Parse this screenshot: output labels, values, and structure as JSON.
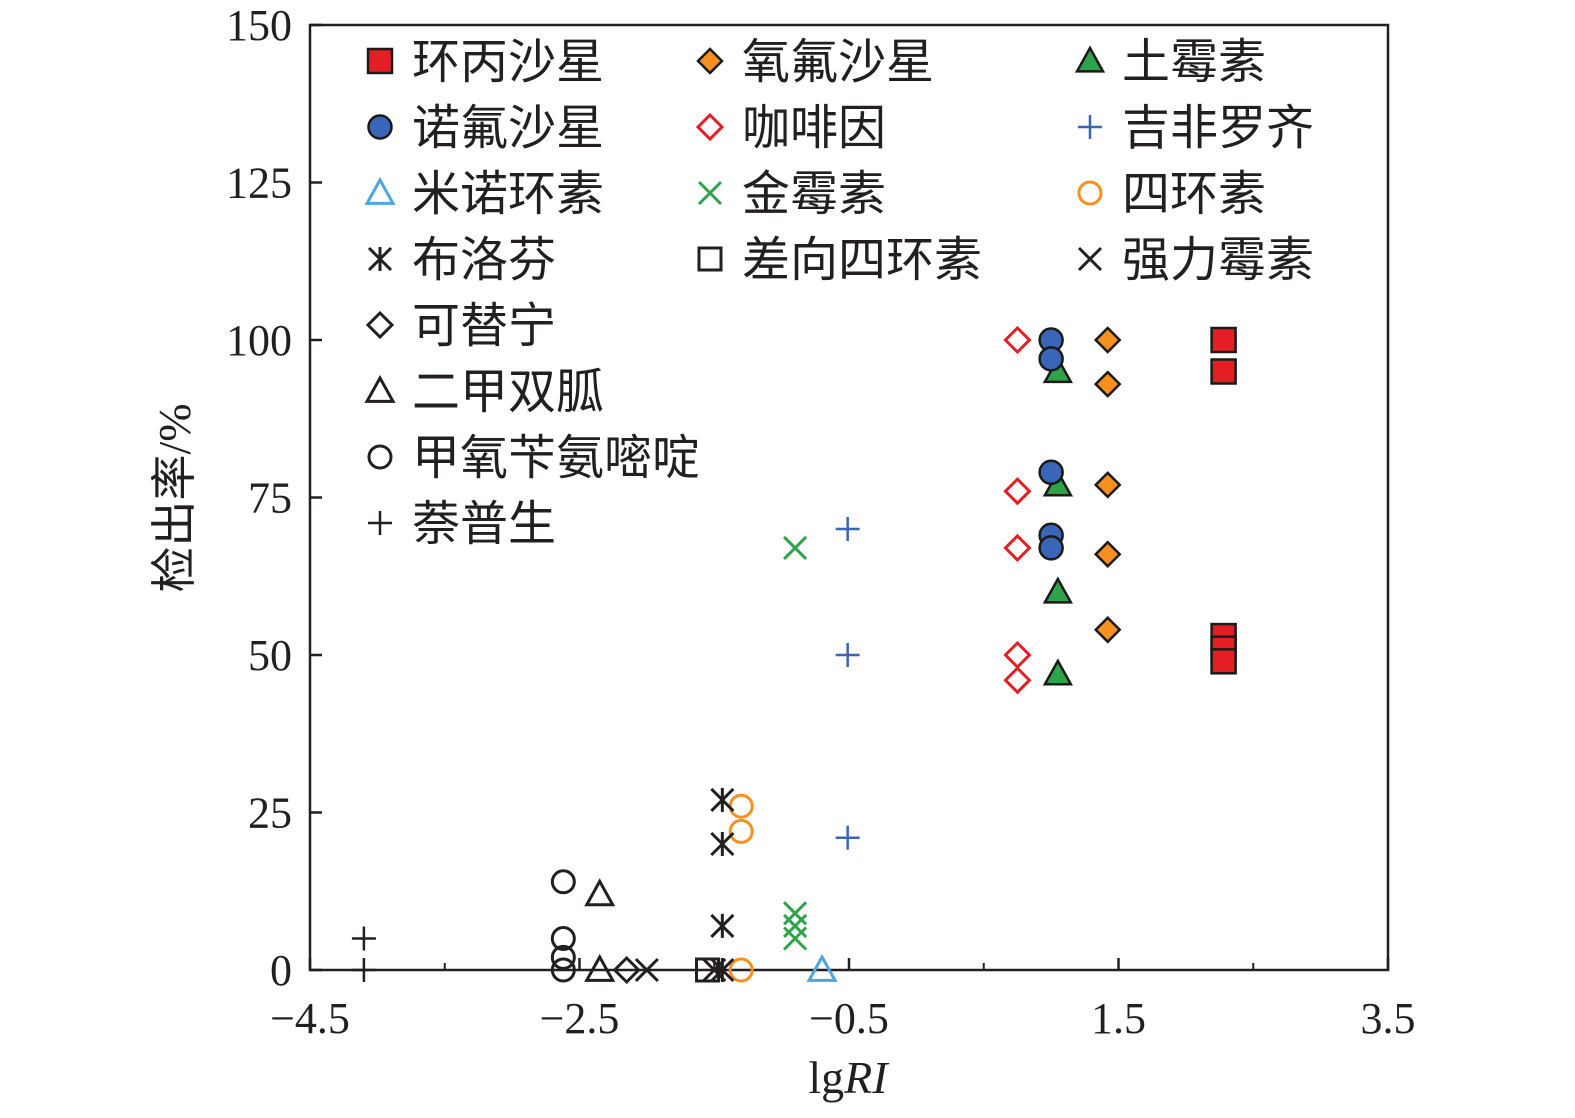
{
  "chart_data": {
    "type": "scatter",
    "xlabel_prefix": "lg",
    "xlabel_italic": "RI",
    "ylabel": "检出率/%",
    "xlim": [
      -4.5,
      3.5
    ],
    "ylim": [
      0,
      150
    ],
    "x_ticks": [
      -4.5,
      -2.5,
      -0.5,
      1.5,
      3.5
    ],
    "x_tick_labels": [
      "−4.5",
      "−2.5",
      "−0.5",
      "1.5",
      "3.5"
    ],
    "y_ticks": [
      0,
      25,
      50,
      75,
      100,
      125,
      150
    ],
    "y_tick_labels": [
      "0",
      "25",
      "50",
      "75",
      "100",
      "125",
      "150"
    ],
    "grid": false,
    "legend_position": "top-left, inside plot, 3 columns",
    "series": [
      {
        "name": "环丙沙星",
        "marker": "square",
        "color": "#e31e24",
        "filled": true,
        "points": [
          [
            2.28,
            100
          ],
          [
            2.28,
            95
          ],
          [
            2.28,
            53
          ],
          [
            2.28,
            51
          ],
          [
            2.28,
            49
          ]
        ]
      },
      {
        "name": "氧氟沙星",
        "marker": "diamond",
        "color": "#f7901e",
        "filled": true,
        "points": [
          [
            1.42,
            100
          ],
          [
            1.42,
            93
          ],
          [
            1.42,
            77
          ],
          [
            1.42,
            66
          ],
          [
            1.42,
            54
          ]
        ]
      },
      {
        "name": "土霉素",
        "marker": "triangle",
        "color": "#2da44a",
        "filled": true,
        "points": [
          [
            1.05,
            95
          ],
          [
            1.05,
            77
          ],
          [
            1.05,
            60
          ],
          [
            1.05,
            47
          ]
        ]
      },
      {
        "name": "诺氟沙星",
        "marker": "circle",
        "color": "#3a66b8",
        "filled": true,
        "points": [
          [
            1.0,
            100
          ],
          [
            1.0,
            97
          ],
          [
            1.0,
            79
          ],
          [
            1.0,
            69
          ],
          [
            1.0,
            67
          ]
        ]
      },
      {
        "name": "咖啡因",
        "marker": "diamond",
        "color": "#e31e24",
        "filled": false,
        "points": [
          [
            0.75,
            100
          ],
          [
            0.75,
            76
          ],
          [
            0.75,
            67
          ],
          [
            0.75,
            50
          ],
          [
            0.75,
            46
          ]
        ]
      },
      {
        "name": "吉非罗齐",
        "marker": "plus",
        "color": "#3a66b8",
        "filled": false,
        "points": [
          [
            -0.51,
            70
          ],
          [
            -0.51,
            50
          ],
          [
            -0.51,
            21
          ]
        ]
      },
      {
        "name": "米诺环素",
        "marker": "triangle",
        "color": "#4ba7dc",
        "filled": false,
        "points": [
          [
            -0.7,
            0
          ]
        ]
      },
      {
        "name": "金霉素",
        "marker": "x",
        "color": "#2da44a",
        "filled": false,
        "points": [
          [
            -0.9,
            67
          ],
          [
            -0.9,
            9
          ],
          [
            -0.9,
            7
          ],
          [
            -0.9,
            5
          ]
        ]
      },
      {
        "name": "四环素",
        "marker": "circle",
        "color": "#f7901e",
        "filled": false,
        "points": [
          [
            -1.3,
            26
          ],
          [
            -1.3,
            22
          ],
          [
            -1.3,
            0
          ]
        ]
      },
      {
        "name": "布洛芬",
        "marker": "asterisk",
        "color": "#231f20",
        "filled": false,
        "points": [
          [
            -1.44,
            27
          ],
          [
            -1.44,
            20
          ],
          [
            -1.44,
            7
          ],
          [
            -1.44,
            0
          ]
        ]
      },
      {
        "name": "差向四环素",
        "marker": "square",
        "color": "#231f20",
        "filled": false,
        "points": [
          [
            -1.55,
            0
          ]
        ]
      },
      {
        "name": "强力霉素",
        "marker": "x",
        "color": "#231f20",
        "filled": false,
        "points": [
          [
            -2.0,
            0
          ],
          [
            -1.5,
            0
          ]
        ]
      },
      {
        "name": "可替宁",
        "marker": "diamond",
        "color": "#231f20",
        "filled": false,
        "points": [
          [
            -2.15,
            0
          ]
        ]
      },
      {
        "name": "二甲双胍",
        "marker": "triangle",
        "color": "#231f20",
        "filled": false,
        "points": [
          [
            -2.35,
            12
          ],
          [
            -2.35,
            0
          ]
        ]
      },
      {
        "name": "甲氧苄氨嘧啶",
        "marker": "circle",
        "color": "#231f20",
        "filled": false,
        "points": [
          [
            -2.62,
            14
          ],
          [
            -2.62,
            5
          ],
          [
            -2.62,
            2
          ],
          [
            -2.62,
            0
          ]
        ]
      },
      {
        "name": "萘普生",
        "marker": "plus",
        "color": "#231f20",
        "filled": false,
        "points": [
          [
            -4.1,
            5
          ],
          [
            -4.1,
            0
          ]
        ]
      }
    ]
  }
}
